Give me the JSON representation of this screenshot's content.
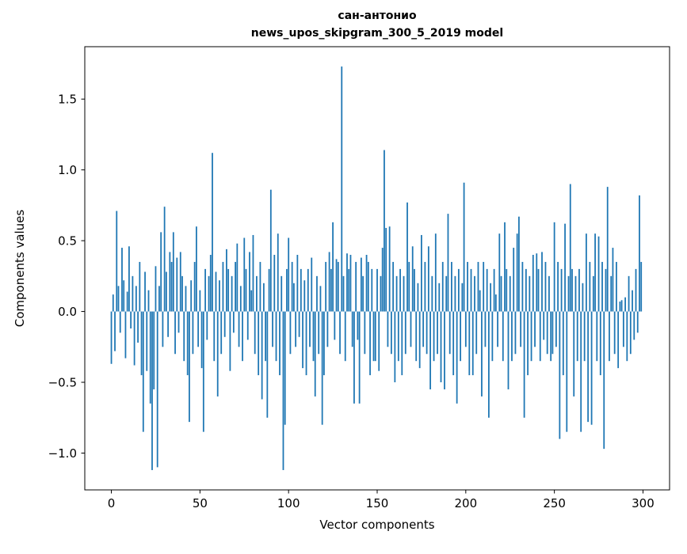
{
  "figure": {
    "title_line1": "сан-антонио",
    "title_line2": "news_upos_skipgram_300_5_2019 model"
  },
  "chart_data": {
    "type": "bar",
    "title": "сан-антонио\nnews_upos_skipgram_300_5_2019 model",
    "xlabel": "Vector components",
    "ylabel": "Components values",
    "xlim": [
      -15,
      315
    ],
    "ylim": [
      -1.26,
      1.87
    ],
    "xticks": [
      0,
      50,
      100,
      150,
      200,
      250,
      300
    ],
    "yticks": [
      -1.0,
      -0.5,
      0.0,
      0.5,
      1.0,
      1.5
    ],
    "bar_color": "#1f77b4",
    "bar_width_data": 0.8,
    "values": [
      -0.37,
      0.12,
      -0.28,
      0.71,
      0.18,
      -0.15,
      0.45,
      0.22,
      -0.33,
      0.14,
      0.46,
      -0.12,
      0.25,
      -0.38,
      0.18,
      -0.22,
      0.35,
      -0.45,
      -0.85,
      0.28,
      -0.42,
      0.15,
      -0.65,
      -1.12,
      -0.55,
      0.32,
      -1.1,
      0.18,
      0.56,
      -0.25,
      0.74,
      0.28,
      -0.18,
      0.42,
      0.35,
      0.56,
      -0.3,
      0.38,
      -0.15,
      0.42,
      0.25,
      -0.35,
      0.18,
      -0.45,
      -0.78,
      0.22,
      -0.3,
      0.35,
      0.6,
      -0.25,
      0.15,
      -0.4,
      -0.85,
      0.3,
      -0.2,
      0.25,
      0.4,
      1.12,
      -0.35,
      0.28,
      -0.6,
      0.22,
      -0.3,
      0.35,
      -0.18,
      0.44,
      0.3,
      -0.42,
      0.25,
      -0.15,
      0.35,
      0.48,
      -0.25,
      0.18,
      -0.35,
      0.52,
      0.3,
      -0.2,
      0.42,
      0.15,
      0.54,
      -0.3,
      0.25,
      -0.45,
      0.35,
      -0.62,
      0.2,
      -0.35,
      -0.75,
      0.3,
      0.86,
      -0.25,
      0.4,
      -0.35,
      0.55,
      -0.45,
      0.25,
      -1.12,
      -0.8,
      0.3,
      0.52,
      -0.3,
      0.35,
      0.2,
      -0.25,
      0.4,
      -0.18,
      0.3,
      -0.4,
      0.22,
      -0.45,
      0.3,
      -0.25,
      0.38,
      -0.35,
      -0.6,
      0.25,
      -0.3,
      0.18,
      -0.8,
      -0.45,
      0.35,
      -0.25,
      0.42,
      0.3,
      0.63,
      -0.2,
      0.37,
      0.35,
      -0.3,
      1.73,
      0.25,
      -0.35,
      0.41,
      0.3,
      0.4,
      -0.25,
      -0.65,
      0.35,
      -0.2,
      -0.65,
      0.38,
      0.25,
      -0.3,
      0.4,
      0.35,
      -0.45,
      0.3,
      -0.35,
      -0.35,
      0.3,
      -0.42,
      0.25,
      0.45,
      1.14,
      0.59,
      -0.25,
      0.6,
      -0.3,
      0.35,
      -0.5,
      0.25,
      -0.35,
      0.3,
      -0.45,
      0.25,
      -0.3,
      0.77,
      0.35,
      -0.25,
      0.46,
      0.3,
      -0.35,
      0.2,
      -0.4,
      0.54,
      -0.25,
      0.35,
      -0.3,
      0.46,
      -0.55,
      0.25,
      -0.35,
      0.55,
      -0.3,
      0.2,
      -0.5,
      0.35,
      -0.55,
      0.25,
      0.69,
      -0.3,
      0.35,
      -0.45,
      0.25,
      -0.65,
      0.3,
      -0.35,
      0.2,
      0.91,
      -0.25,
      0.35,
      -0.45,
      0.3,
      -0.45,
      0.25,
      -0.3,
      0.35,
      0.15,
      -0.6,
      0.35,
      -0.25,
      0.3,
      -0.75,
      0.2,
      -0.35,
      0.3,
      0.12,
      -0.25,
      0.55,
      0.25,
      -0.35,
      0.63,
      0.3,
      -0.55,
      0.25,
      -0.35,
      0.45,
      -0.3,
      0.55,
      0.67,
      -0.25,
      0.35,
      -0.75,
      0.3,
      -0.45,
      0.25,
      -0.35,
      0.4,
      -0.25,
      0.41,
      0.3,
      -0.35,
      0.42,
      -0.2,
      0.35,
      -0.3,
      0.25,
      -0.35,
      -0.3,
      0.63,
      -0.25,
      0.35,
      -0.9,
      0.3,
      -0.45,
      0.62,
      -0.85,
      0.25,
      0.9,
      0.3,
      -0.6,
      0.25,
      -0.35,
      0.3,
      -0.85,
      0.2,
      -0.35,
      0.55,
      -0.78,
      0.35,
      -0.8,
      0.25,
      0.55,
      -0.35,
      0.53,
      -0.45,
      0.35,
      -0.97,
      0.3,
      0.88,
      -0.35,
      0.25,
      0.45,
      -0.3,
      0.35,
      -0.4,
      0.07,
      0.08,
      -0.25,
      0.1,
      -0.35,
      0.25,
      -0.3,
      0.15,
      -0.2,
      0.3,
      -0.15,
      0.82,
      0.35
    ]
  }
}
